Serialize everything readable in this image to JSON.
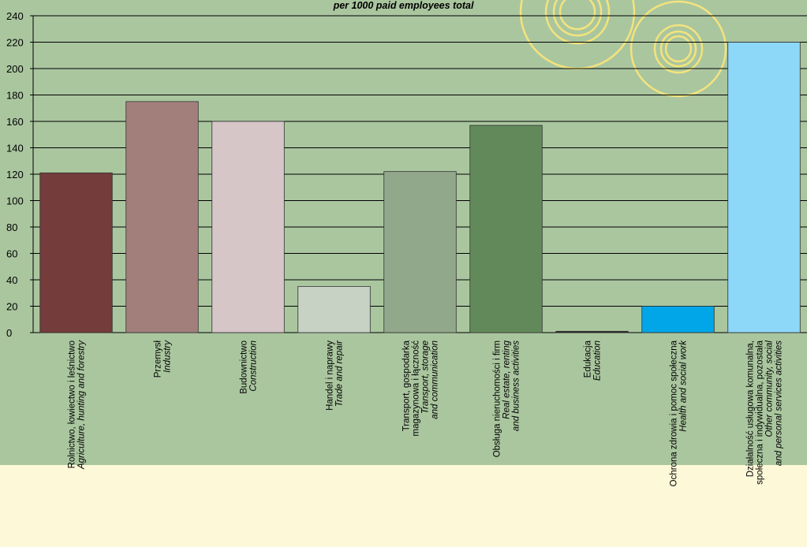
{
  "chart_data": {
    "type": "bar",
    "title": "per 1000 paid employees total",
    "ylim": [
      0,
      240
    ],
    "yticks": [
      0,
      20,
      40,
      60,
      80,
      100,
      120,
      140,
      160,
      180,
      200,
      220,
      240
    ],
    "grid": true,
    "categories": [
      {
        "pl": [
          "Rolnictwo, łowiectwo i leśnictwo"
        ],
        "en": [
          "Agriculture, hunting and forestry"
        ]
      },
      {
        "pl": [
          "Przemysł"
        ],
        "en": [
          "Industry"
        ]
      },
      {
        "pl": [
          "Budownictwo"
        ],
        "en": [
          "Construction"
        ]
      },
      {
        "pl": [
          "Handel i naprawy"
        ],
        "en": [
          "Trade and repair"
        ]
      },
      {
        "pl": [
          "Transport, gospodarka",
          "magazynowa i łączność"
        ],
        "en": [
          "Transport, storage",
          "and communication"
        ]
      },
      {
        "pl": [
          "Obsługa nieruchomości i firm"
        ],
        "en": [
          "Real estate, renting",
          "and business activities"
        ]
      },
      {
        "pl": [
          "Edukacja"
        ],
        "en": [
          "Education"
        ]
      },
      {
        "pl": [
          "Ochrona zdrowia i pomoc społeczna"
        ],
        "en": [
          "Health and social work"
        ]
      },
      {
        "pl": [
          "Działalność usługowa komunalna,",
          "społeczna i indywidualna, pozostała"
        ],
        "en": [
          "Other community, social",
          "and personal services activities"
        ]
      }
    ],
    "values": [
      121,
      175,
      160,
      35,
      122,
      157,
      1,
      20,
      220
    ],
    "colors": [
      "#743c3a",
      "#a27f7b",
      "#d6c6c8",
      "#c7d1c4",
      "#91a98a",
      "#62895a",
      "#222222",
      "#00a6e8",
      "#8dd7f8"
    ]
  }
}
